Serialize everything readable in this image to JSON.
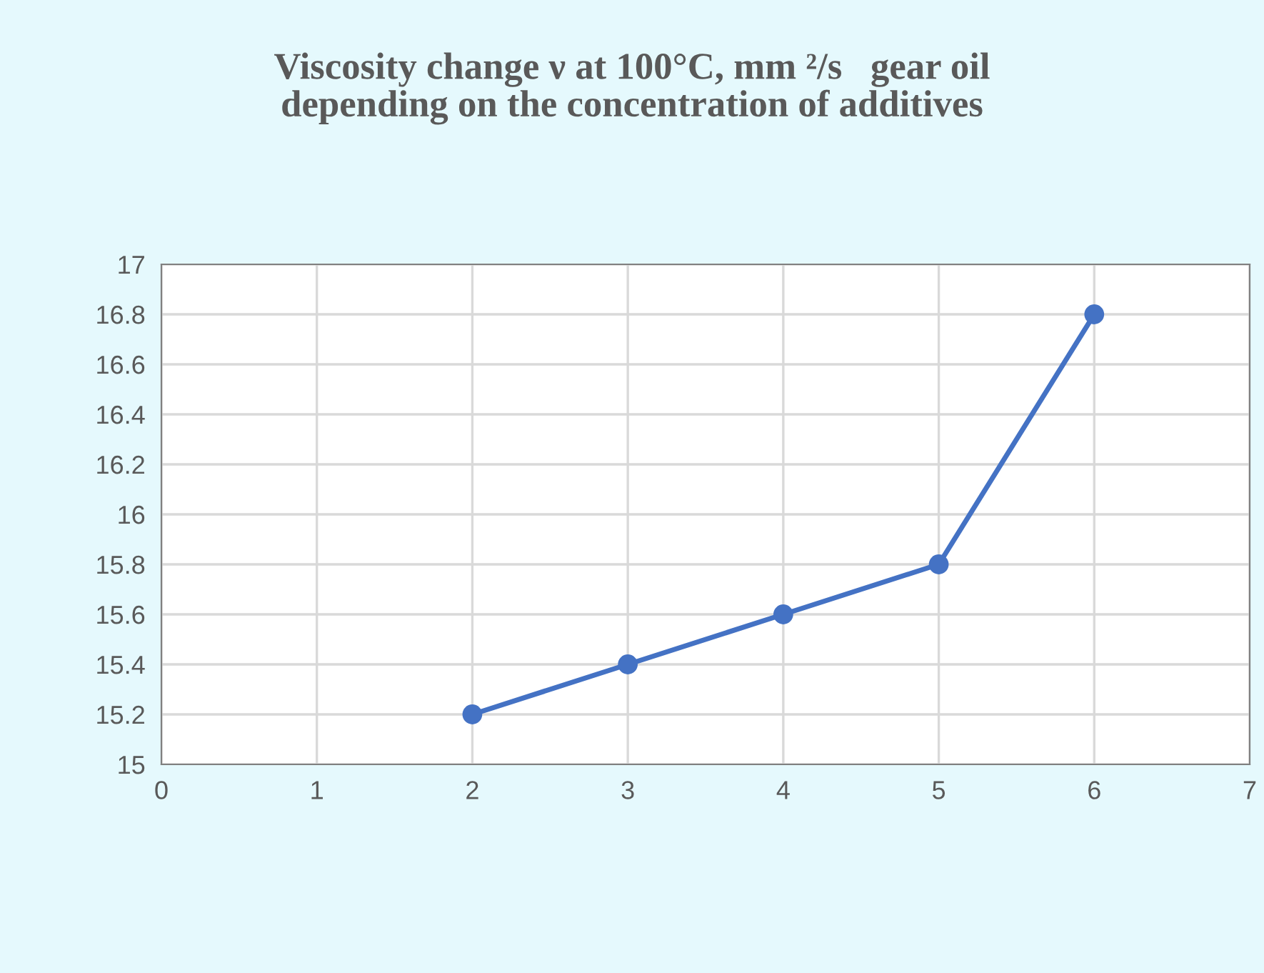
{
  "chart_data": {
    "type": "line",
    "title": "Viscosity change ν at 100°C, mm ²/s   gear oil\ndepending on the concentration of additives",
    "x": [
      2,
      3,
      4,
      5,
      6
    ],
    "series": [
      {
        "color": "#4472c4",
        "values": [
          15.2,
          15.4,
          15.6,
          15.8,
          16.8
        ]
      }
    ],
    "xlim": [
      0,
      7
    ],
    "xticks": [
      0,
      1,
      2,
      3,
      4,
      5,
      6,
      7
    ],
    "ylim": [
      15,
      17
    ],
    "yticks": [
      15,
      15.2,
      15.4,
      15.6,
      15.8,
      16,
      16.2,
      16.4,
      16.6,
      16.8,
      17
    ],
    "grid": true,
    "marker": "circle",
    "line_style": "solid"
  }
}
